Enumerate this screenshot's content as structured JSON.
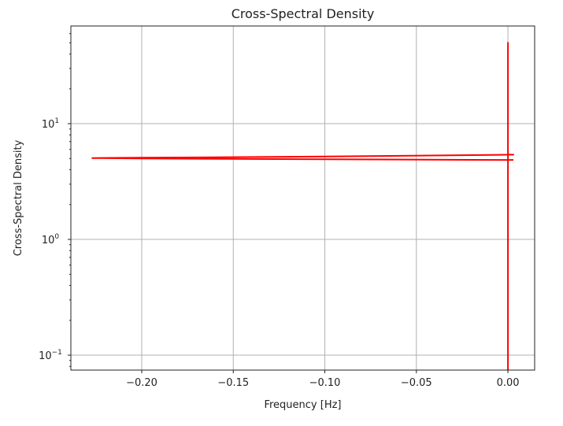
{
  "chart_data": {
    "type": "line",
    "title": "Cross-Spectral Density",
    "xlabel": "Frequency [Hz]",
    "ylabel": "Cross-Spectral Density",
    "xlim": [
      -0.2387,
      0.0146
    ],
    "ylim": [
      0.0743,
      69.8
    ],
    "yscale": "log",
    "grid": true,
    "xticks": [
      -0.2,
      -0.15,
      -0.1,
      -0.05,
      0.0
    ],
    "xtick_labels": [
      "−0.20",
      "−0.15",
      "−0.10",
      "−0.05",
      "0.00"
    ],
    "yticks": [
      0.1,
      1,
      10
    ],
    "ytick_labels": [
      {
        "base": "10",
        "exp": "−1"
      },
      {
        "base": "10",
        "exp": "0"
      },
      {
        "base": "10",
        "exp": "1"
      }
    ],
    "series": [
      {
        "name": "csd",
        "color": "#ff0000",
        "x": [
          0.0,
          0.0,
          0.0,
          0.0005,
          0.003,
          -0.02,
          -0.1,
          -0.2,
          -0.227,
          -0.2,
          -0.1,
          -0.02,
          0.003
        ],
        "y": [
          0.05,
          50,
          5.4,
          5.4,
          5.4,
          5.35,
          5.2,
          5.08,
          5.05,
          5.0,
          4.92,
          4.87,
          4.86
        ]
      }
    ]
  }
}
